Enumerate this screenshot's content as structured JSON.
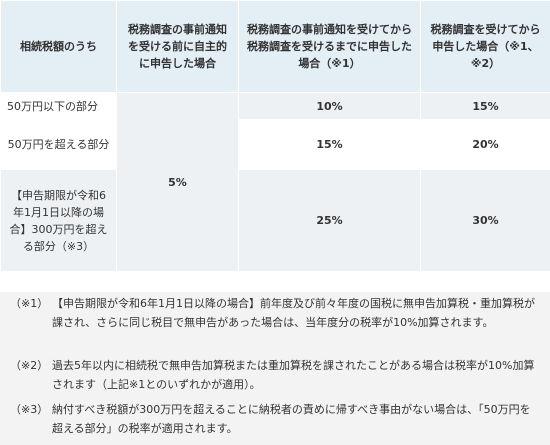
{
  "header": {
    "col1": "相続税額のうち",
    "col2": "税務調査の事前通知を受ける前に自主的に申告した場合",
    "col3": "税務調査の事前通知を受けてから税務調査を受けるまでに申告した場合（※1）",
    "col4": "税務調査を受けてから申告した場合（※1、※2）"
  },
  "rows": [
    {
      "label": "50万円以下の部分",
      "c3": "10%",
      "c4": "15%"
    },
    {
      "label": "50万円を超える部分",
      "c3": "15%",
      "c4": "20%"
    },
    {
      "label": "【申告期限が令和6年1月1日以降の場合】300万円を超える部分（※3）",
      "c3": "25%",
      "c4": "30%"
    }
  ],
  "col2_merged": "5%",
  "notes": [
    {
      "mark": "（※1）",
      "text": "【申告期限が令和6年1月1日以降の場合】前年度及び前々年度の国税に無申告加算税・重加算税が課され、さらに同じ税目で無申告があった場合は、当年度分の税率が10%加算されます。"
    },
    {
      "mark": "（※2）",
      "text": "過去5年以内に相続税で無申告加算税または重加算税を課されたことがある場合は税率が10%加算されます（上記※1とのいずれかが適用）。"
    },
    {
      "mark": "（※3）",
      "text": "納付すべき税額が300万円を超えることに納税者の責めに帰すべき事由がない場合は、「50万円を超える部分」の税率が適用されます。"
    }
  ]
}
